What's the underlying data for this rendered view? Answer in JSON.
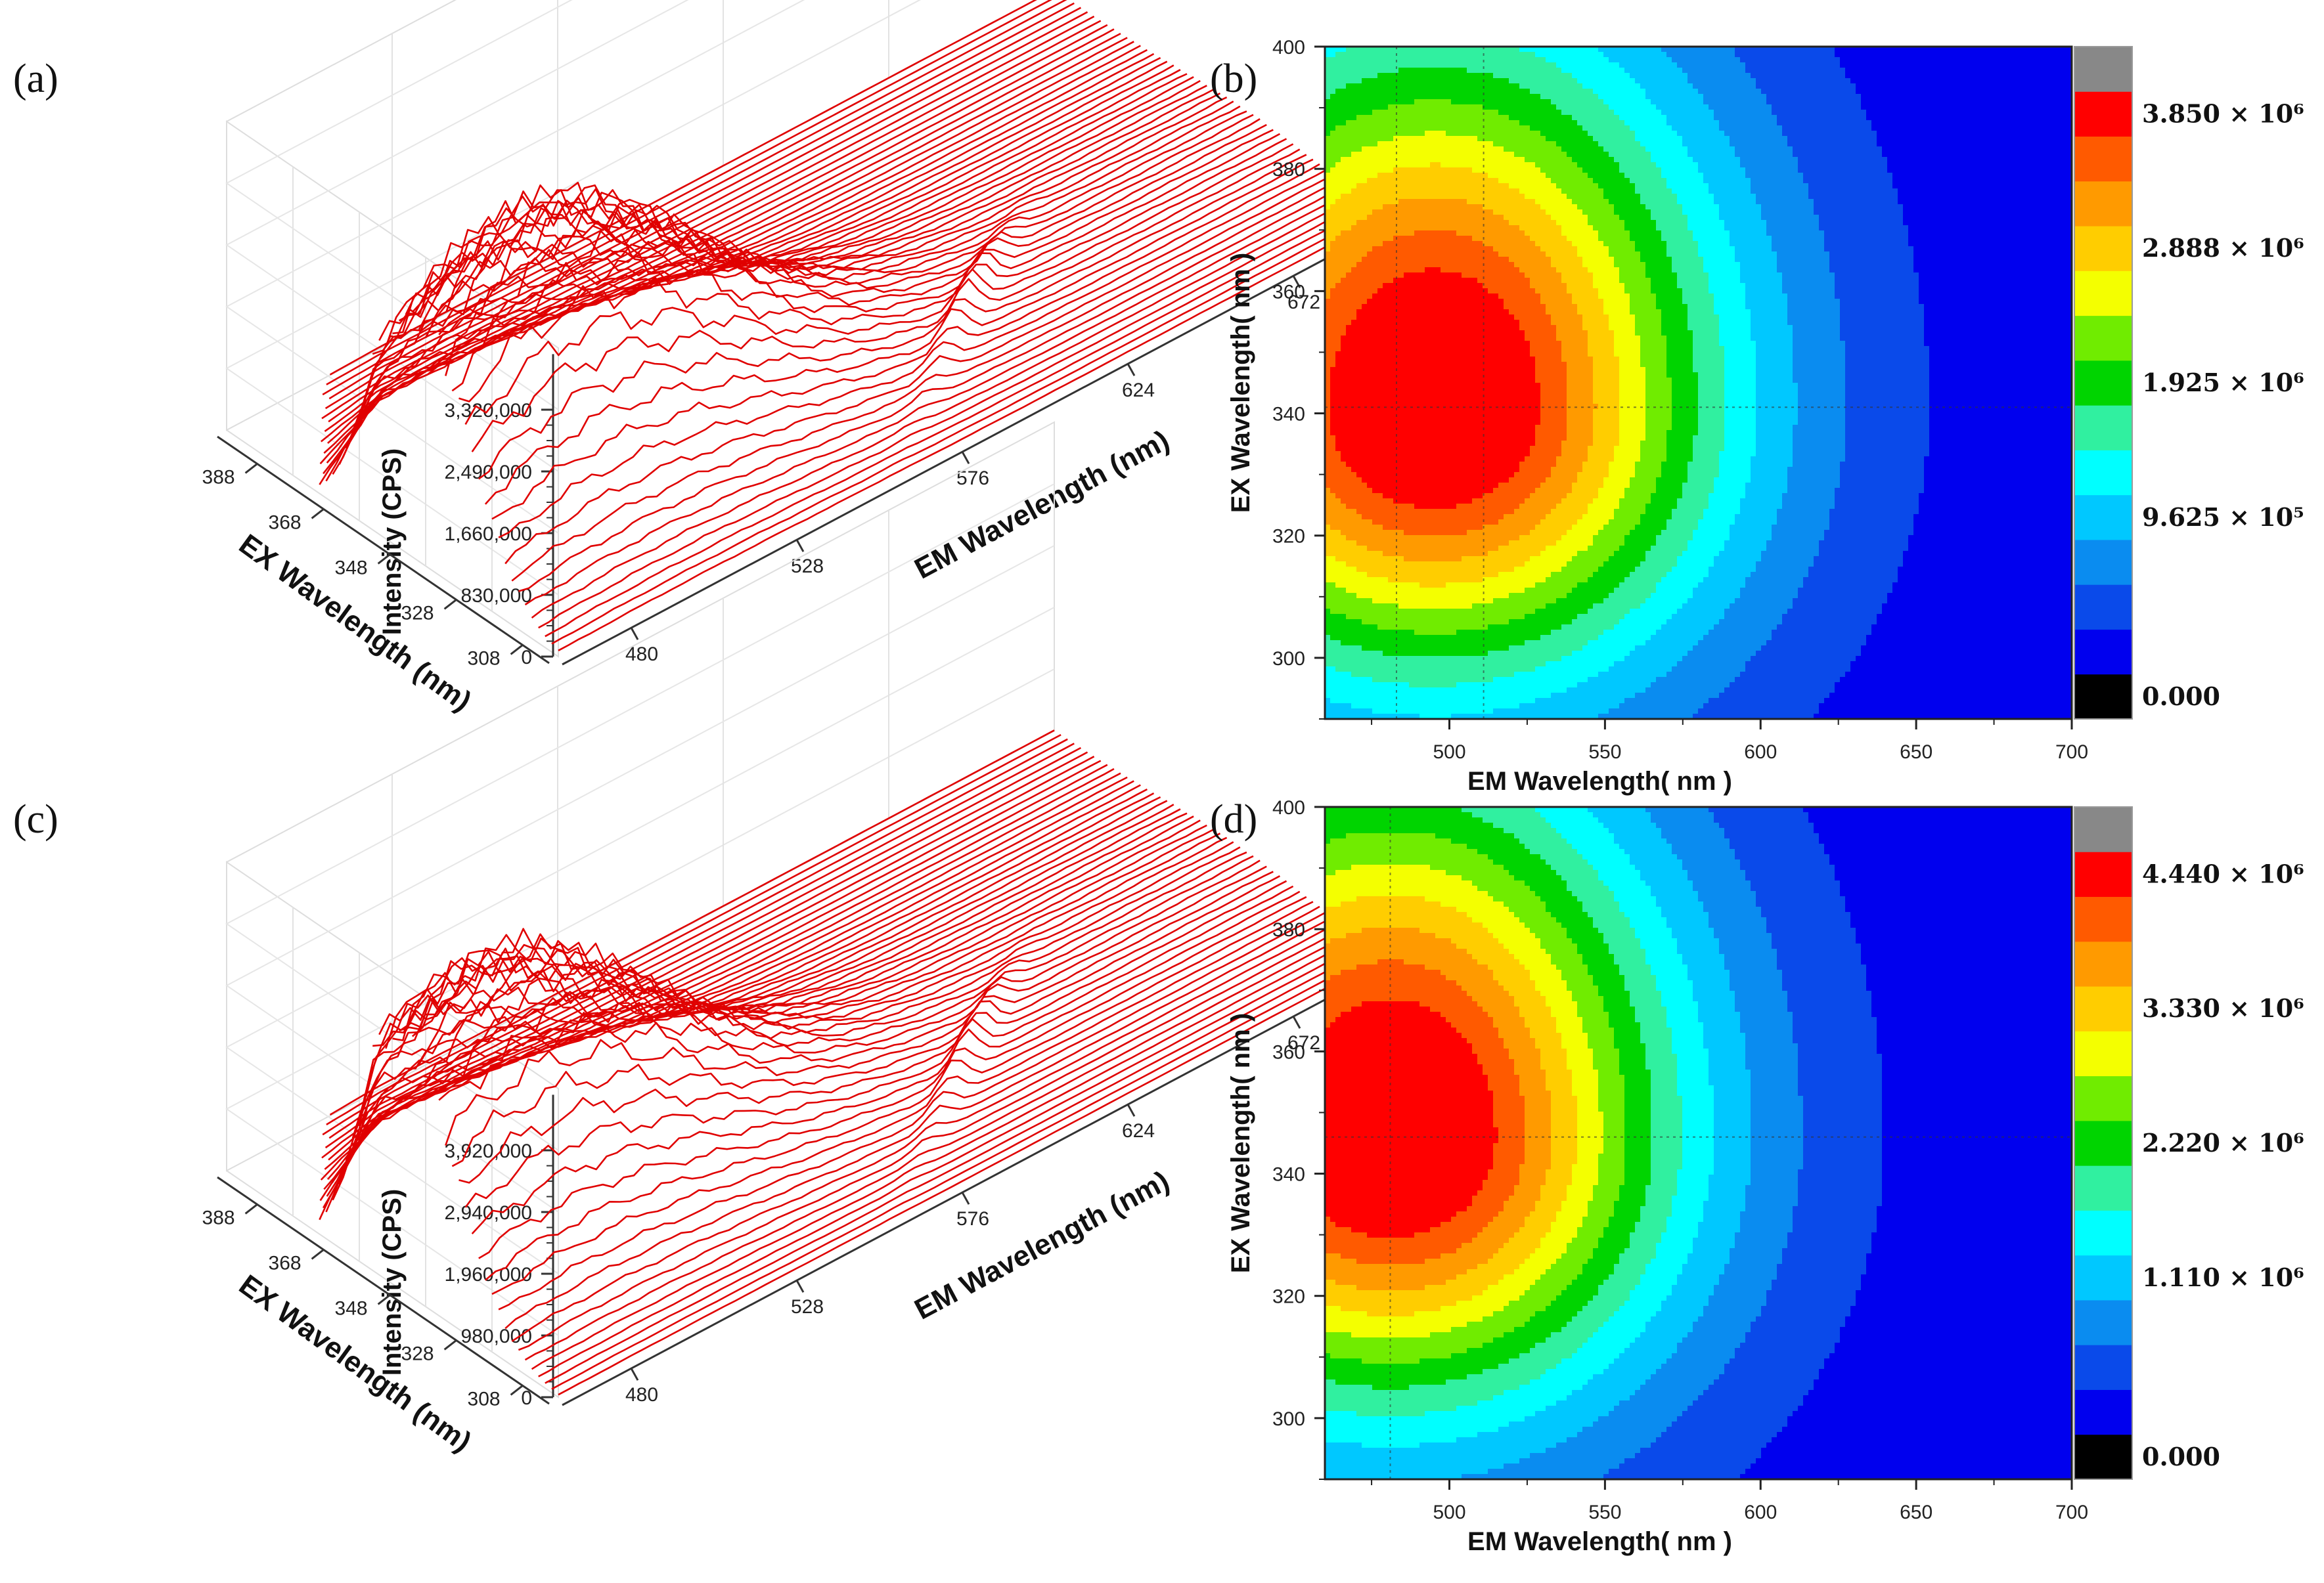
{
  "colorbar_colors": [
    "#000000",
    "#0000ee",
    "#0a4aea",
    "#0a8cf0",
    "#00c8ff",
    "#00ffff",
    "#30f0a0",
    "#00d400",
    "#70ec00",
    "#f4ff00",
    "#ffcd00",
    "#ff9a00",
    "#ff5a00",
    "#ff0000",
    "#888888"
  ],
  "line_color": "#e00000",
  "chart_data": [
    {
      "id": "a",
      "type": "surface3d-waterfall",
      "panel_label": "(a)",
      "z_label": "Intensity (CPS)",
      "x_label": "EX Wavelength (nm)",
      "y_label": "EM Wavelength (nm)",
      "z_ticks": [
        "0",
        "830,000",
        "1,660,000",
        "2,490,000",
        "3,320,000"
      ],
      "ex_ticks": [
        "388",
        "368",
        "348",
        "328",
        "308"
      ],
      "em_ticks": [
        "480",
        "528",
        "576",
        "624",
        "672"
      ],
      "zmax": 4150000,
      "peak_intensity": 3850000,
      "peak_em": 490,
      "peak_ex": 341,
      "scatter_em": 595
    },
    {
      "id": "b",
      "type": "contour",
      "panel_label": "(b)",
      "xlabel": "EM Wavelength( nm )",
      "ylabel": "EX Wavelength( nm )",
      "xlim": [
        460,
        700
      ],
      "ylim": [
        290,
        400
      ],
      "xticks": [
        "500",
        "550",
        "600",
        "650",
        "700"
      ],
      "yticks": [
        "300",
        "320",
        "340",
        "360",
        "380",
        "400"
      ],
      "colorbar_labels": [
        "3.850 × 10⁶",
        "2.888 × 10⁶",
        "1.925 × 10⁶",
        "9.625 × 10⁵",
        "0.000"
      ],
      "max_intensity": 3850000,
      "peak_em": 495,
      "peak_ex": 341,
      "ref_lines": {
        "em": [
          483,
          511
        ],
        "ex": 341
      },
      "extent_em_max": 668
    },
    {
      "id": "c",
      "type": "surface3d-waterfall",
      "panel_label": "(c)",
      "z_label": "Intensity (CPS)",
      "x_label": "EX Wavelength (nm)",
      "y_label": "EM Wavelength (nm)",
      "z_ticks": [
        "0",
        "980,000",
        "1,960,000",
        "2,940,000",
        "3,920,000"
      ],
      "ex_ticks": [
        "388",
        "368",
        "348",
        "328",
        "308"
      ],
      "em_ticks": [
        "480",
        "528",
        "576",
        "624",
        "672"
      ],
      "zmax": 4900000,
      "peak_intensity": 4440000,
      "peak_em": 482,
      "peak_ex": 346,
      "scatter_em": 595
    },
    {
      "id": "d",
      "type": "contour",
      "panel_label": "(d)",
      "xlabel": "EM Wavelength( nm )",
      "ylabel": "EX Wavelength( nm )",
      "xlim": [
        460,
        700
      ],
      "ylim": [
        290,
        400
      ],
      "xticks": [
        "500",
        "550",
        "600",
        "650",
        "700"
      ],
      "yticks": [
        "300",
        "320",
        "340",
        "360",
        "380",
        "400"
      ],
      "colorbar_labels": [
        "4.440 × 10⁶",
        "3.330 × 10⁶",
        "2.220 × 10⁶",
        "1.110 × 10⁶",
        "0.000"
      ],
      "max_intensity": 4440000,
      "peak_em": 481,
      "peak_ex": 346,
      "ref_lines": {
        "em": [
          481
        ],
        "ex": 346
      },
      "extent_em_max": 652
    }
  ]
}
